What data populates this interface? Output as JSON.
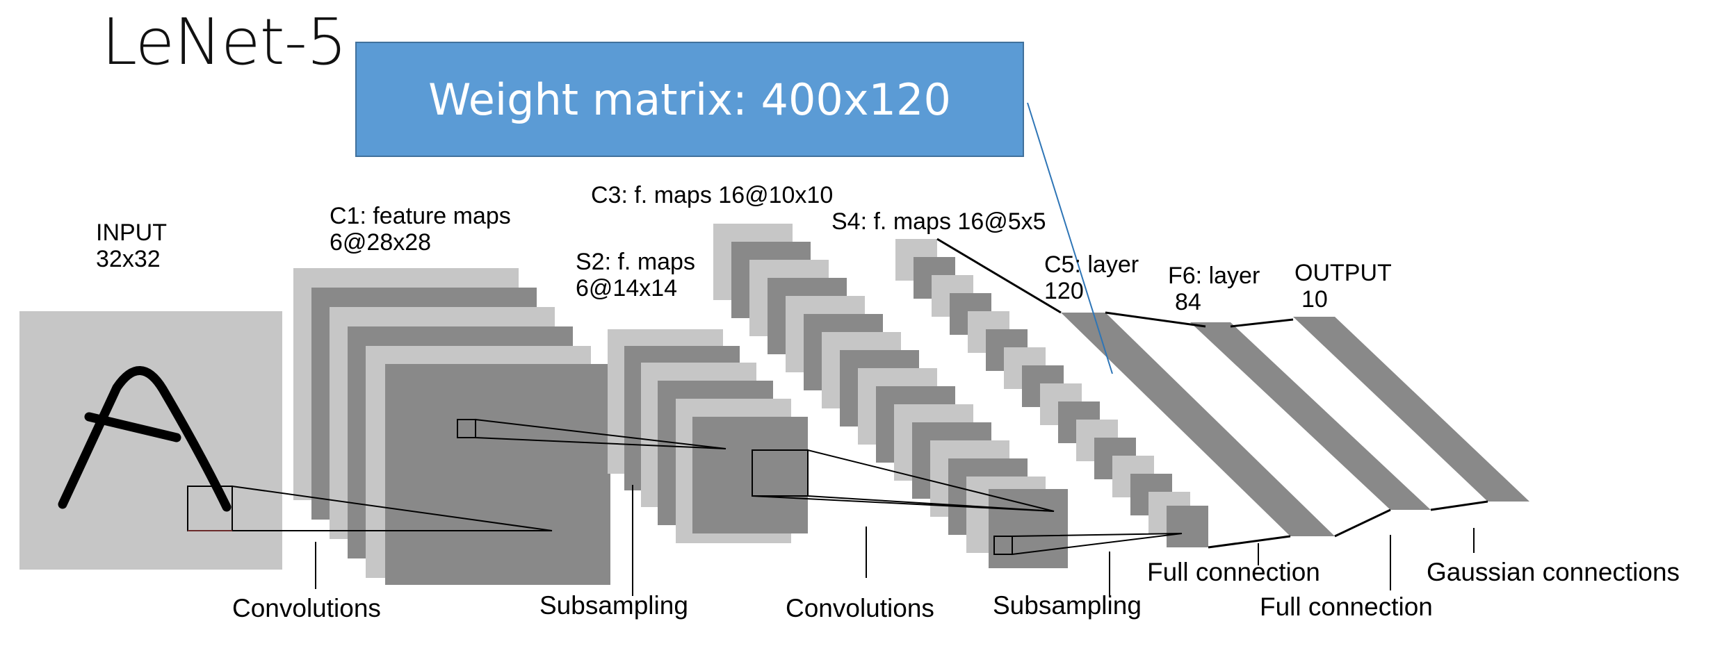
{
  "title": "LeNet-5",
  "callout": {
    "text": "Weight matrix: 400x120"
  },
  "layers": {
    "input": {
      "name": "INPUT",
      "size": "32x32"
    },
    "c1": {
      "name": "C1: feature maps",
      "size": "6@28x28"
    },
    "s2": {
      "name": "S2: f. maps",
      "size": "6@14x14"
    },
    "c3": {
      "name": "C3: f. maps 16@10x10"
    },
    "s4": {
      "name": "S4: f. maps 16@5x5"
    },
    "c5": {
      "name": "C5: layer",
      "size": "120"
    },
    "f6": {
      "name": "F6: layer",
      "size": "84"
    },
    "output": {
      "name": "OUTPUT",
      "size": "10"
    }
  },
  "operations": {
    "conv1": "Convolutions",
    "subsamp1": "Subsampling",
    "conv2": "Convolutions",
    "subsamp2": "Subsampling",
    "full1": "Full connection",
    "full2": "Full connection",
    "gauss": "Gaussian connections"
  },
  "colors": {
    "light_map": "#c6c6c6",
    "dark_map": "#898989",
    "callout_fill": "#5b9bd5",
    "callout_border": "#41719c",
    "connector_line": "#2e75b6"
  }
}
